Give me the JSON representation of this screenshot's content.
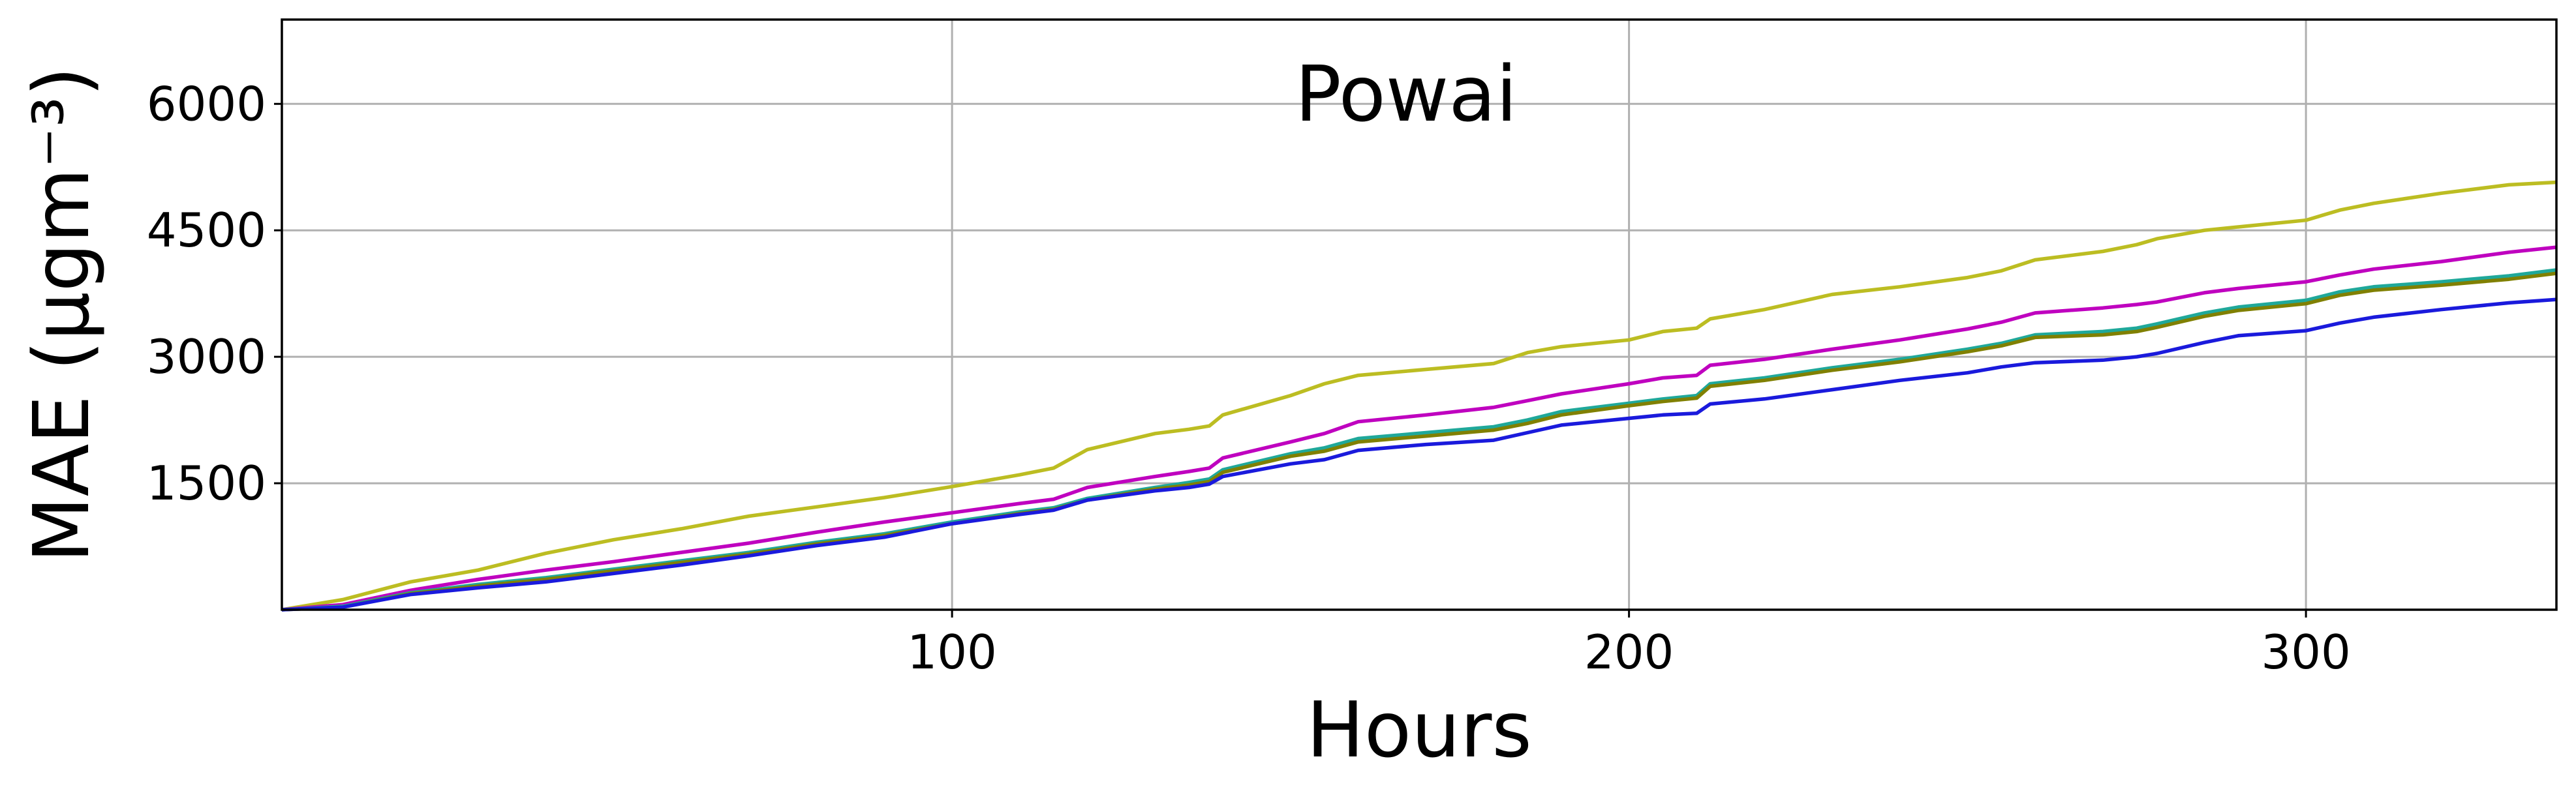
{
  "chart_data": {
    "type": "line",
    "title": "Powai",
    "xlabel": "Hours",
    "ylabel": "MAE (μgm⁻³)",
    "xlim": [
      1,
      337
    ],
    "ylim": [
      0,
      7000
    ],
    "xticks": [
      100,
      200,
      300
    ],
    "yticks": [
      1500,
      3000,
      4500,
      6000
    ],
    "grid": true,
    "series": [
      {
        "color": "#bcbd22",
        "x": [
          1,
          10,
          20,
          30,
          40,
          50,
          60,
          70,
          80,
          90,
          100,
          110,
          115,
          120,
          130,
          135,
          138,
          140,
          150,
          155,
          160,
          170,
          180,
          185,
          190,
          200,
          205,
          210,
          212,
          220,
          230,
          240,
          250,
          255,
          260,
          270,
          275,
          278,
          285,
          290,
          300,
          305,
          310,
          320,
          330,
          337
        ],
        "y": [
          0,
          120,
          330,
          470,
          670,
          830,
          960,
          1110,
          1220,
          1330,
          1460,
          1600,
          1680,
          1900,
          2090,
          2140,
          2180,
          2310,
          2540,
          2680,
          2780,
          2850,
          2920,
          3050,
          3120,
          3200,
          3300,
          3340,
          3450,
          3560,
          3740,
          3830,
          3940,
          4020,
          4150,
          4250,
          4330,
          4400,
          4500,
          4540,
          4620,
          4740,
          4820,
          4940,
          5040,
          5070
        ]
      },
      {
        "color": "#bf00bf",
        "x": [
          1,
          10,
          20,
          30,
          40,
          50,
          60,
          70,
          80,
          90,
          100,
          110,
          115,
          120,
          130,
          135,
          138,
          140,
          150,
          155,
          160,
          170,
          180,
          185,
          190,
          200,
          205,
          210,
          212,
          220,
          230,
          240,
          250,
          255,
          260,
          270,
          275,
          278,
          285,
          290,
          300,
          305,
          310,
          320,
          330,
          337
        ],
        "y": [
          0,
          60,
          230,
          360,
          470,
          570,
          680,
          790,
          920,
          1040,
          1150,
          1260,
          1310,
          1450,
          1580,
          1640,
          1680,
          1800,
          1990,
          2090,
          2230,
          2310,
          2400,
          2480,
          2560,
          2680,
          2750,
          2780,
          2900,
          2970,
          3090,
          3200,
          3330,
          3410,
          3520,
          3580,
          3620,
          3650,
          3760,
          3810,
          3890,
          3970,
          4040,
          4130,
          4240,
          4300
        ]
      },
      {
        "color": "#1fa89a",
        "x": [
          1,
          10,
          20,
          30,
          40,
          50,
          60,
          70,
          80,
          90,
          100,
          110,
          115,
          120,
          130,
          135,
          138,
          140,
          150,
          155,
          160,
          170,
          180,
          185,
          190,
          200,
          205,
          210,
          212,
          220,
          230,
          240,
          250,
          255,
          260,
          270,
          275,
          278,
          285,
          290,
          300,
          305,
          310,
          320,
          330,
          337
        ],
        "y": [
          0,
          40,
          200,
          300,
          380,
          480,
          580,
          680,
          800,
          900,
          1040,
          1160,
          1210,
          1320,
          1450,
          1510,
          1550,
          1660,
          1850,
          1920,
          2030,
          2100,
          2170,
          2250,
          2350,
          2450,
          2500,
          2540,
          2680,
          2750,
          2870,
          2970,
          3090,
          3160,
          3260,
          3300,
          3340,
          3390,
          3520,
          3590,
          3670,
          3770,
          3830,
          3890,
          3960,
          4030
        ]
      },
      {
        "color": "#808000",
        "x": [
          1,
          10,
          20,
          30,
          40,
          50,
          60,
          70,
          80,
          90,
          100,
          110,
          115,
          120,
          130,
          135,
          138,
          140,
          150,
          155,
          160,
          170,
          180,
          185,
          190,
          200,
          205,
          210,
          212,
          220,
          230,
          240,
          250,
          255,
          260,
          270,
          275,
          278,
          285,
          290,
          300,
          305,
          310,
          320,
          330,
          337
        ],
        "y": [
          0,
          30,
          190,
          280,
          360,
          460,
          560,
          660,
          780,
          880,
          1020,
          1140,
          1190,
          1300,
          1430,
          1480,
          1520,
          1630,
          1820,
          1880,
          1990,
          2060,
          2130,
          2210,
          2310,
          2420,
          2470,
          2510,
          2650,
          2720,
          2840,
          2940,
          3060,
          3130,
          3230,
          3260,
          3300,
          3350,
          3480,
          3550,
          3630,
          3730,
          3790,
          3850,
          3920,
          3990
        ]
      },
      {
        "color": "#1a1adc",
        "x": [
          1,
          10,
          20,
          30,
          40,
          50,
          60,
          70,
          80,
          90,
          100,
          110,
          115,
          120,
          130,
          135,
          138,
          140,
          150,
          155,
          160,
          170,
          180,
          185,
          190,
          200,
          205,
          210,
          212,
          220,
          230,
          240,
          250,
          255,
          260,
          270,
          275,
          278,
          285,
          290,
          300,
          305,
          310,
          320,
          330,
          337
        ],
        "y": [
          0,
          30,
          180,
          260,
          330,
          430,
          530,
          640,
          760,
          860,
          1020,
          1130,
          1180,
          1300,
          1410,
          1450,
          1490,
          1580,
          1730,
          1780,
          1890,
          1960,
          2010,
          2100,
          2190,
          2270,
          2310,
          2330,
          2440,
          2500,
          2610,
          2720,
          2810,
          2880,
          2930,
          2960,
          3000,
          3040,
          3170,
          3250,
          3310,
          3400,
          3470,
          3560,
          3640,
          3680
        ]
      }
    ]
  }
}
